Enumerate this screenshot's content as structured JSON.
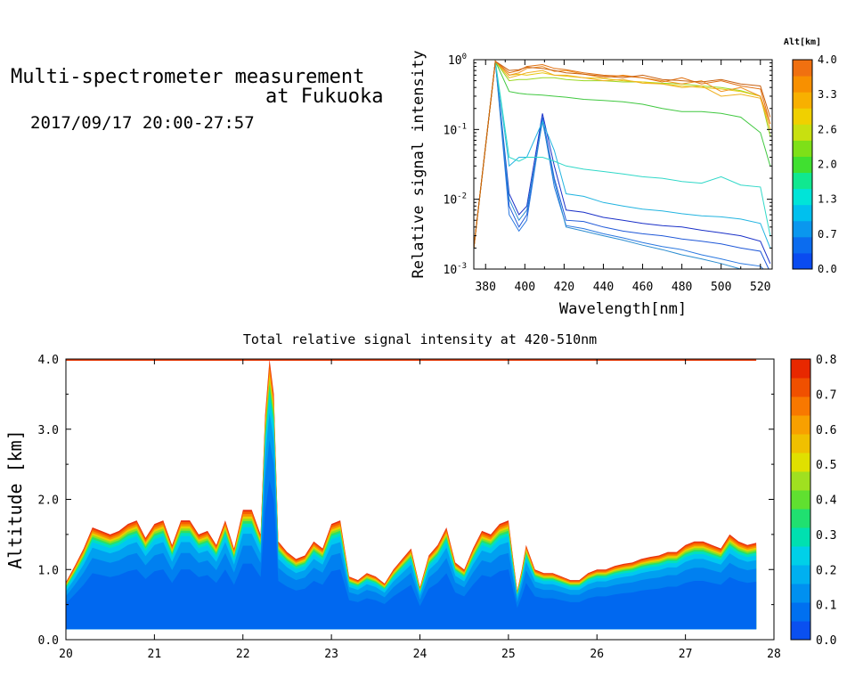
{
  "header": {
    "title_line1": "Multi-spectrometer measurement",
    "title_line2": "at Fukuoka",
    "datetime": "2017/09/17 20:00-27:57"
  },
  "chart_data": [
    {
      "type": "line",
      "xlabel": "Wavelength[nm]",
      "ylabel": "Relative signal intensity",
      "xlim": [
        374,
        526
      ],
      "ylim": [
        0.001,
        1
      ],
      "y_scale": "log",
      "x_ticks": [
        380,
        400,
        420,
        440,
        460,
        480,
        500,
        520
      ],
      "y_ticks": [
        0.001,
        0.01,
        0.1,
        1
      ],
      "y_tick_labels": [
        [
          "10",
          "-3"
        ],
        [
          "10",
          "-2"
        ],
        [
          "10",
          "-1"
        ],
        [
          "10",
          "0"
        ]
      ],
      "colorbar": {
        "title": "Alt[km]",
        "ticks": [
          "4.0",
          "3.3",
          "2.6",
          "2.0",
          "1.3",
          "0.7",
          "0.0"
        ],
        "colors": [
          "#0a4bf0",
          "#0b6cef",
          "#0a97ee",
          "#00c0ee",
          "#00e4d8",
          "#10e890",
          "#40e030",
          "#7ee018",
          "#c8e010",
          "#f0d000",
          "#f8b000",
          "#f89000",
          "#f07010"
        ]
      },
      "x": [
        374,
        385,
        392,
        397,
        401,
        409,
        415,
        421,
        430,
        440,
        450,
        460,
        470,
        480,
        490,
        500,
        510,
        520,
        525
      ],
      "series": [
        {
          "color": "#1a30c8",
          "values": [
            0.002,
            0.95,
            0.012,
            0.006,
            0.008,
            0.17,
            0.03,
            0.007,
            0.0065,
            0.0055,
            0.005,
            0.0045,
            0.0042,
            0.004,
            0.0036,
            0.0033,
            0.003,
            0.0025,
            0.0012
          ]
        },
        {
          "color": "#1f58d8",
          "values": [
            0.002,
            0.95,
            0.008,
            0.004,
            0.006,
            0.15,
            0.02,
            0.005,
            0.0048,
            0.004,
            0.0035,
            0.0032,
            0.003,
            0.0027,
            0.0025,
            0.0023,
            0.002,
            0.0018,
            0.0009
          ]
        },
        {
          "color": "#2a78e0",
          "values": [
            0.002,
            0.95,
            0.006,
            0.0035,
            0.005,
            0.14,
            0.015,
            0.0042,
            0.0038,
            0.0032,
            0.0028,
            0.0024,
            0.0021,
            0.0019,
            0.0016,
            0.0014,
            0.0012,
            0.0011,
            0.0008
          ]
        },
        {
          "color": "#2a8cd0",
          "values": [
            0.002,
            0.95,
            0.01,
            0.005,
            0.007,
            0.13,
            0.018,
            0.004,
            0.0035,
            0.003,
            0.0026,
            0.0022,
            0.0019,
            0.0016,
            0.0014,
            0.0012,
            0.001,
            0.00095,
            0.0008
          ]
        },
        {
          "color": "#22b4e0",
          "values": [
            0.002,
            0.95,
            0.03,
            0.04,
            0.04,
            0.13,
            0.05,
            0.012,
            0.011,
            0.009,
            0.008,
            0.0072,
            0.0068,
            0.0062,
            0.0058,
            0.0056,
            0.0052,
            0.0045,
            0.002
          ]
        },
        {
          "color": "#30d8c8",
          "values": [
            0.002,
            0.95,
            0.04,
            0.035,
            0.04,
            0.04,
            0.035,
            0.03,
            0.027,
            0.025,
            0.023,
            0.021,
            0.02,
            0.018,
            0.017,
            0.021,
            0.016,
            0.015,
            0.003
          ]
        },
        {
          "color": "#40c840",
          "values": [
            0.002,
            0.95,
            0.35,
            0.33,
            0.32,
            0.31,
            0.3,
            0.29,
            0.27,
            0.26,
            0.25,
            0.23,
            0.2,
            0.18,
            0.18,
            0.17,
            0.15,
            0.09,
            0.03
          ]
        },
        {
          "color": "#9ad820",
          "values": [
            0.002,
            0.95,
            0.5,
            0.52,
            0.52,
            0.55,
            0.55,
            0.52,
            0.5,
            0.5,
            0.48,
            0.48,
            0.46,
            0.45,
            0.42,
            0.4,
            0.36,
            0.3,
            0.08
          ]
        },
        {
          "color": "#e8c810",
          "values": [
            0.002,
            0.95,
            0.6,
            0.62,
            0.6,
            0.65,
            0.6,
            0.58,
            0.55,
            0.54,
            0.5,
            0.48,
            0.45,
            0.42,
            0.4,
            0.38,
            0.35,
            0.3,
            0.1
          ]
        },
        {
          "color": "#f0b020",
          "values": [
            0.002,
            0.95,
            0.55,
            0.6,
            0.65,
            0.7,
            0.6,
            0.6,
            0.55,
            0.5,
            0.52,
            0.46,
            0.45,
            0.4,
            0.42,
            0.3,
            0.32,
            0.28,
            0.1
          ]
        },
        {
          "color": "#f09020",
          "values": [
            0.002,
            0.95,
            0.6,
            0.65,
            0.75,
            0.8,
            0.68,
            0.7,
            0.62,
            0.55,
            0.6,
            0.55,
            0.5,
            0.45,
            0.5,
            0.35,
            0.4,
            0.3,
            0.12
          ]
        },
        {
          "color": "#e07010",
          "values": [
            0.002,
            0.95,
            0.65,
            0.7,
            0.8,
            0.85,
            0.75,
            0.72,
            0.65,
            0.6,
            0.58,
            0.55,
            0.48,
            0.55,
            0.45,
            0.5,
            0.42,
            0.38,
            0.12
          ]
        },
        {
          "color": "#c86010",
          "values": [
            0.002,
            0.95,
            0.7,
            0.72,
            0.78,
            0.75,
            0.7,
            0.65,
            0.62,
            0.58,
            0.55,
            0.6,
            0.52,
            0.5,
            0.48,
            0.52,
            0.45,
            0.42,
            0.15
          ]
        }
      ]
    },
    {
      "type": "heatmap",
      "title": "Total relative signal intensity at 420-510nm",
      "ylabel": "Altitude [km]",
      "xlabel": "",
      "xlim": [
        20,
        28
      ],
      "ylim": [
        0,
        4
      ],
      "x_ticks": [
        "20",
        "21",
        "22",
        "23",
        "24",
        "25",
        "26",
        "27",
        "28"
      ],
      "y_ticks": [
        "0.0",
        "1.0",
        "2.0",
        "3.0",
        "4.0"
      ],
      "colorbar": {
        "ticks": [
          "0.8",
          "0.7",
          "0.6",
          "0.5",
          "0.4",
          "0.3",
          "0.2",
          "0.1",
          "0.0"
        ],
        "colors": [
          "#0a50f0",
          "#0070f0",
          "#0090f0",
          "#00b0f0",
          "#00d0e8",
          "#00e0b0",
          "#20e070",
          "#60e030",
          "#a0e020",
          "#e0e000",
          "#f0c000",
          "#f8a000",
          "#f87800",
          "#f05000",
          "#e82800"
        ]
      },
      "data_bottom_km": 0.15,
      "time_hours": [
        20.0,
        20.1,
        20.2,
        20.3,
        20.4,
        20.5,
        20.6,
        20.7,
        20.8,
        20.9,
        21.0,
        21.1,
        21.2,
        21.3,
        21.4,
        21.5,
        21.6,
        21.7,
        21.8,
        21.9,
        22.0,
        22.1,
        22.2,
        22.25,
        22.3,
        22.35,
        22.4,
        22.5,
        22.6,
        22.7,
        22.8,
        22.9,
        23.0,
        23.1,
        23.2,
        23.3,
        23.4,
        23.5,
        23.6,
        23.7,
        23.8,
        23.9,
        24.0,
        24.1,
        24.2,
        24.3,
        24.4,
        24.5,
        24.6,
        24.7,
        24.8,
        24.9,
        25.0,
        25.05,
        25.1,
        25.15,
        25.2,
        25.3,
        25.4,
        25.5,
        25.6,
        25.7,
        25.8,
        25.9,
        26.0,
        26.1,
        26.2,
        26.3,
        26.4,
        26.5,
        26.6,
        26.7,
        26.8,
        26.9,
        27.0,
        27.1,
        27.2,
        27.3,
        27.4,
        27.5,
        27.6,
        27.7,
        27.8
      ],
      "top_altitude_km": [
        0.82,
        1.05,
        1.3,
        1.6,
        1.55,
        1.5,
        1.55,
        1.65,
        1.7,
        1.45,
        1.65,
        1.7,
        1.35,
        1.7,
        1.7,
        1.5,
        1.55,
        1.35,
        1.7,
        1.3,
        1.85,
        1.85,
        1.5,
        3.2,
        4.0,
        3.5,
        1.4,
        1.25,
        1.15,
        1.2,
        1.4,
        1.3,
        1.65,
        1.7,
        0.9,
        0.85,
        0.95,
        0.9,
        0.8,
        1.0,
        1.15,
        1.3,
        0.75,
        1.2,
        1.35,
        1.6,
        1.1,
        1.0,
        1.3,
        1.55,
        1.5,
        1.65,
        1.7,
        1.2,
        0.7,
        1.0,
        1.35,
        1.0,
        0.95,
        0.95,
        0.9,
        0.85,
        0.85,
        0.95,
        1.0,
        1.0,
        1.05,
        1.08,
        1.1,
        1.15,
        1.18,
        1.2,
        1.25,
        1.25,
        1.35,
        1.4,
        1.4,
        1.35,
        1.3,
        1.5,
        1.4,
        1.35,
        1.38
      ]
    }
  ]
}
